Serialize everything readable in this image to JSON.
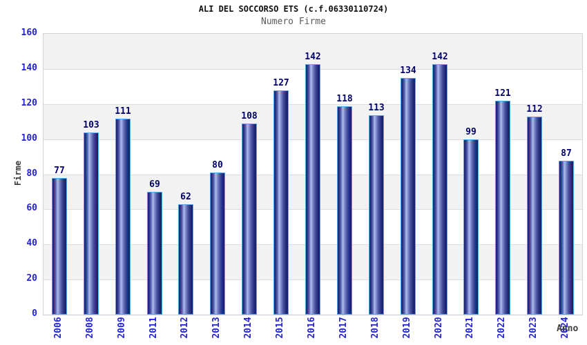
{
  "chart_data": {
    "type": "bar",
    "title": "ALI DEL SOCCORSO ETS (c.f.06330110724)",
    "subtitle": "Numero Firme",
    "xlabel": "Anno",
    "ylabel": "Firme",
    "categories": [
      "2006",
      "2008",
      "2009",
      "2011",
      "2012",
      "2013",
      "2014",
      "2015",
      "2016",
      "2017",
      "2018",
      "2019",
      "2020",
      "2021",
      "2022",
      "2023",
      "2024"
    ],
    "values": [
      77,
      103,
      111,
      69,
      62,
      80,
      108,
      127,
      142,
      118,
      113,
      134,
      142,
      99,
      121,
      112,
      87
    ],
    "ylim": [
      0,
      160
    ],
    "ytick_step": 20,
    "grid": "horizontal-bands-alternating",
    "legend": "none",
    "colors": {
      "band_gray": "#f2f2f2",
      "band_white": "#ffffff",
      "gridline": "#dcdcdc",
      "tick_label_blue": "#2323cf",
      "value_label_navy": "#00006a",
      "bar_border_lightblue": "#58a6f0",
      "bar_dark": "#1b246e",
      "bar_highlight": "#b3bdea",
      "title_black": "#101010",
      "subtitle_gray": "#5a5a5a",
      "axis_title_gray": "#3a3a3a"
    }
  }
}
